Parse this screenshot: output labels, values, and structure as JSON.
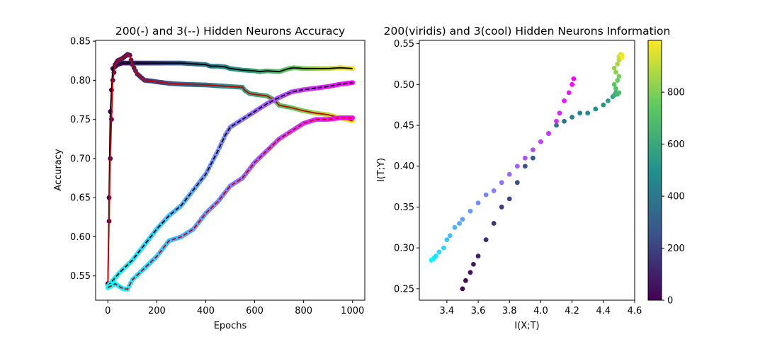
{
  "chart_data": [
    {
      "type": "line",
      "title": "200(-) and 3(--) Hidden Neurons Accuracy",
      "xlabel": "Epochs",
      "ylabel": "Accuracy",
      "xlim": [
        -50,
        1050
      ],
      "ylim": [
        0.519,
        0.851
      ],
      "xticks": [
        0,
        200,
        400,
        600,
        800,
        1000
      ],
      "yticks": [
        0.55,
        0.6,
        0.65,
        0.7,
        0.75,
        0.8,
        0.85
      ],
      "xtick_labels": [
        "0",
        "200",
        "400",
        "600",
        "800",
        "1000"
      ],
      "ytick_labels": [
        "0.55",
        "0.60",
        "0.65",
        "0.70",
        "0.75",
        "0.80",
        "0.85"
      ],
      "grid": false,
      "series": [
        {
          "style": "solid",
          "line_color": "#000000",
          "marker_colormap": "viridis",
          "x": [
            0,
            10,
            20,
            40,
            60,
            80,
            100,
            150,
            200,
            250,
            300,
            350,
            400,
            420,
            450,
            480,
            500,
            550,
            600,
            620,
            650,
            700,
            740,
            760,
            800,
            850,
            900,
            950,
            1000
          ],
          "y": [
            0.54,
            0.76,
            0.815,
            0.82,
            0.822,
            0.822,
            0.822,
            0.822,
            0.822,
            0.822,
            0.822,
            0.821,
            0.82,
            0.818,
            0.818,
            0.817,
            0.815,
            0.813,
            0.812,
            0.811,
            0.812,
            0.811,
            0.815,
            0.816,
            0.815,
            0.815,
            0.815,
            0.816,
            0.815
          ]
        },
        {
          "style": "solid",
          "line_color": "#cc0000",
          "marker_colormap": "viridis",
          "x": [
            0,
            10,
            20,
            30,
            40,
            60,
            80,
            90,
            100,
            120,
            150,
            180,
            200,
            250,
            300,
            400,
            500,
            550,
            560,
            580,
            600,
            650,
            680,
            700,
            750,
            800,
            850,
            900,
            950,
            1000
          ],
          "y": [
            0.54,
            0.7,
            0.8,
            0.82,
            0.825,
            0.828,
            0.833,
            0.832,
            0.82,
            0.808,
            0.8,
            0.799,
            0.798,
            0.796,
            0.795,
            0.794,
            0.792,
            0.791,
            0.787,
            0.783,
            0.782,
            0.78,
            0.775,
            0.768,
            0.765,
            0.761,
            0.758,
            0.756,
            0.752,
            0.748
          ]
        },
        {
          "style": "dashed",
          "line_color": "#000000",
          "marker_colormap": "cool",
          "x": [
            0,
            50,
            100,
            150,
            200,
            250,
            300,
            350,
            400,
            450,
            480,
            500,
            550,
            600,
            650,
            700,
            750,
            800,
            850,
            900,
            950,
            1000
          ],
          "y": [
            0.537,
            0.555,
            0.57,
            0.59,
            0.61,
            0.627,
            0.64,
            0.66,
            0.68,
            0.71,
            0.73,
            0.74,
            0.75,
            0.76,
            0.77,
            0.778,
            0.785,
            0.788,
            0.79,
            0.792,
            0.795,
            0.797
          ]
        },
        {
          "style": "dashed",
          "line_color": "#cc0000",
          "marker_colormap": "cool",
          "x": [
            0,
            30,
            60,
            80,
            100,
            150,
            200,
            250,
            300,
            350,
            400,
            450,
            500,
            550,
            600,
            650,
            700,
            750,
            800,
            850,
            900,
            950,
            1000
          ],
          "y": [
            0.535,
            0.54,
            0.534,
            0.533,
            0.545,
            0.56,
            0.575,
            0.595,
            0.6,
            0.61,
            0.63,
            0.645,
            0.665,
            0.675,
            0.695,
            0.71,
            0.725,
            0.735,
            0.745,
            0.75,
            0.75,
            0.752,
            0.752
          ]
        }
      ]
    },
    {
      "type": "scatter",
      "title": "200(viridis) and 3(cool) Hidden Neurons Information",
      "xlabel": "I(X;T)",
      "ylabel": "I(T;Y)",
      "xlim": [
        3.224,
        4.6
      ],
      "ylim": [
        0.236,
        0.554
      ],
      "xticks": [
        3.4,
        3.6,
        3.8,
        4.0,
        4.2,
        4.4,
        4.6
      ],
      "yticks": [
        0.25,
        0.3,
        0.35,
        0.4,
        0.45,
        0.5,
        0.55
      ],
      "xtick_labels": [
        "3.4",
        "3.6",
        "3.8",
        "4.0",
        "4.2",
        "4.4",
        "4.6"
      ],
      "ytick_labels": [
        "0.25",
        "0.30",
        "0.35",
        "0.40",
        "0.45",
        "0.50",
        "0.55"
      ],
      "grid": false,
      "series": [
        {
          "colormap": "viridis",
          "x": [
            3.5,
            3.52,
            3.55,
            3.57,
            3.6,
            3.65,
            3.7,
            3.75,
            3.8,
            3.85,
            3.9,
            3.95,
            4.0,
            4.05,
            4.1,
            4.15,
            4.2,
            4.25,
            4.3,
            4.35,
            4.4,
            4.43,
            4.46,
            4.47,
            4.48,
            4.49,
            4.5,
            4.48,
            4.47,
            4.49,
            4.5,
            4.48,
            4.47,
            4.49,
            4.5,
            4.5,
            4.51,
            4.52,
            4.52
          ],
          "y": [
            0.25,
            0.26,
            0.27,
            0.28,
            0.29,
            0.31,
            0.33,
            0.35,
            0.36,
            0.38,
            0.4,
            0.41,
            0.43,
            0.44,
            0.45,
            0.455,
            0.46,
            0.465,
            0.465,
            0.47,
            0.475,
            0.48,
            0.485,
            0.487,
            0.49,
            0.488,
            0.49,
            0.495,
            0.5,
            0.505,
            0.51,
            0.515,
            0.52,
            0.525,
            0.53,
            0.534,
            0.537,
            0.536,
            0.533
          ]
        },
        {
          "colormap": "cool",
          "x": [
            3.3,
            3.31,
            3.32,
            3.33,
            3.35,
            3.38,
            3.4,
            3.42,
            3.45,
            3.48,
            3.5,
            3.55,
            3.6,
            3.65,
            3.7,
            3.75,
            3.8,
            3.85,
            3.9,
            3.95,
            4.0,
            4.05,
            4.1,
            4.12,
            4.15,
            4.18,
            4.2,
            4.21
          ],
          "y": [
            0.285,
            0.286,
            0.288,
            0.29,
            0.295,
            0.3,
            0.31,
            0.315,
            0.325,
            0.33,
            0.335,
            0.345,
            0.355,
            0.365,
            0.37,
            0.38,
            0.39,
            0.4,
            0.41,
            0.42,
            0.43,
            0.44,
            0.455,
            0.465,
            0.48,
            0.49,
            0.5,
            0.507
          ]
        }
      ],
      "colorbar": {
        "colormap": "viridis",
        "range": [
          0,
          999
        ],
        "ticks": [
          0,
          200,
          400,
          600,
          800
        ],
        "tick_labels": [
          "0",
          "200",
          "400",
          "600",
          "800"
        ]
      }
    }
  ]
}
